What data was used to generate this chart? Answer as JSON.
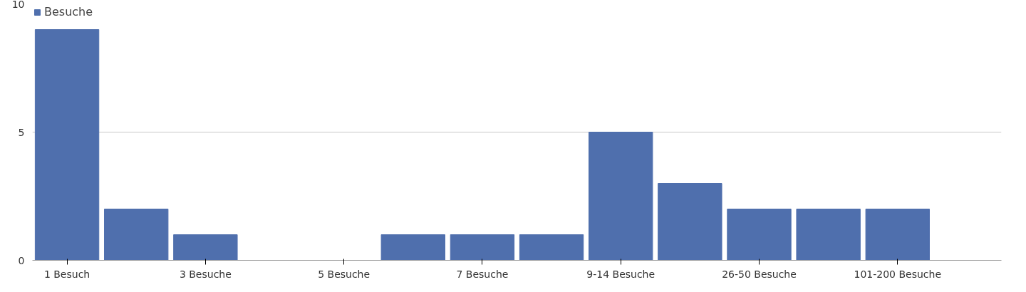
{
  "chart_data": {
    "type": "bar",
    "categories": [
      "1 Besuch",
      null,
      "3 Besuche",
      null,
      "5 Besuche",
      null,
      "7 Besuche",
      null,
      "9-14 Besuche",
      null,
      "26-50 Besuche",
      null,
      "101-200 Besuche",
      null
    ],
    "series": [
      {
        "name": "Besuche",
        "color": "#4f6fad",
        "values": [
          9,
          2,
          1,
          0,
          0,
          1,
          1,
          1,
          5,
          3,
          2,
          2,
          2,
          0
        ]
      }
    ],
    "ylim": [
      0,
      10
    ],
    "yticks": [
      0,
      5,
      10
    ],
    "grid": "y",
    "legend": "top left"
  }
}
